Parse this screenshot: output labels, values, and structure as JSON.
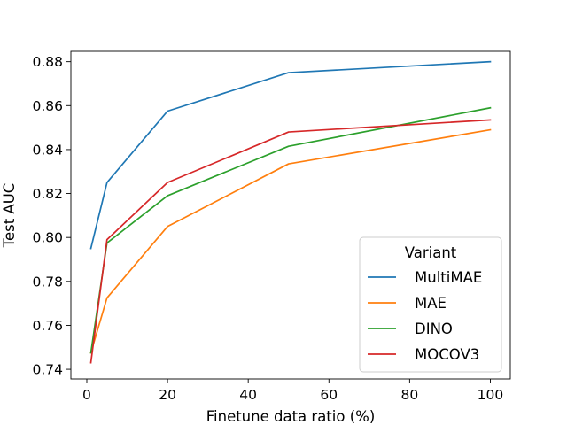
{
  "chart_data": {
    "type": "line",
    "title": "",
    "xlabel": "Finetune data ratio (%)",
    "ylabel": "Test AUC",
    "xlim": [
      -3.95,
      104.95
    ],
    "ylim": [
      0.7356,
      0.8847
    ],
    "xticks": [
      0,
      20,
      40,
      60,
      80,
      100
    ],
    "xtick_labels": [
      "0",
      "20",
      "40",
      "60",
      "80",
      "100"
    ],
    "yticks": [
      0.74,
      0.76,
      0.78,
      0.8,
      0.82,
      0.84,
      0.86,
      0.88
    ],
    "ytick_labels": [
      "0.74",
      "0.76",
      "0.78",
      "0.80",
      "0.82",
      "0.84",
      "0.86",
      "0.88"
    ],
    "grid": false,
    "legend": {
      "title": "Variant",
      "position": "lower-right"
    },
    "x": [
      1,
      5,
      20,
      50,
      100
    ],
    "series": [
      {
        "name": "MultiMAE",
        "color": "#1f77b4",
        "values": [
          0.795,
          0.825,
          0.8575,
          0.875,
          0.88
        ]
      },
      {
        "name": "MAE",
        "color": "#ff7f0e",
        "values": [
          0.7475,
          0.7725,
          0.805,
          0.8335,
          0.849
        ]
      },
      {
        "name": "DINO",
        "color": "#2ca02c",
        "values": [
          0.7475,
          0.7975,
          0.819,
          0.8415,
          0.859
        ]
      },
      {
        "name": "MOCOV3",
        "color": "#d62728",
        "values": [
          0.743,
          0.799,
          0.825,
          0.848,
          0.8535
        ]
      }
    ]
  }
}
